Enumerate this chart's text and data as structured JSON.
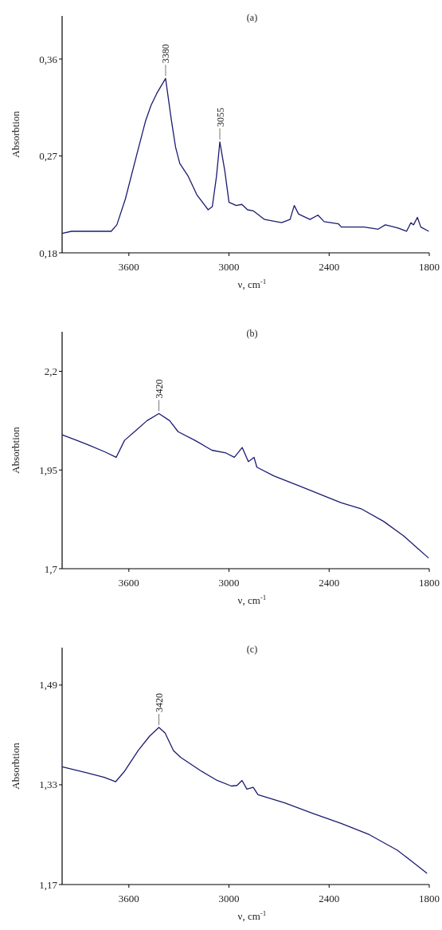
{
  "chart_data": [
    {
      "type": "line",
      "title": "(a)",
      "xlabel": "ν, cm$^{-1}$",
      "ylabel": "Absorbtion",
      "color": "#1b1b72",
      "xlim": [
        4000,
        1800
      ],
      "xticks": [
        3600,
        3000,
        2400,
        1800
      ],
      "ylim": [
        0.18,
        0.4
      ],
      "yticks": [
        {
          "value": 0.18,
          "label": "0,18"
        },
        {
          "value": 0.27,
          "label": "0,27"
        },
        {
          "value": 0.36,
          "label": "0,36"
        }
      ],
      "x": [
        4000,
        3944,
        3706,
        3672,
        3621,
        3553,
        3501,
        3467,
        3433,
        3380,
        3346,
        3320,
        3295,
        3244,
        3193,
        3125,
        3100,
        3075,
        3055,
        3025,
        3000,
        2957,
        2923,
        2889,
        2855,
        2787,
        2685,
        2634,
        2609,
        2583,
        2515,
        2467,
        2430,
        2345,
        2327,
        2259,
        2191,
        2106,
        2063,
        1987,
        1936,
        1910,
        1894,
        1871,
        1851,
        1803
      ],
      "values": [
        0.198,
        0.2,
        0.2,
        0.206,
        0.23,
        0.271,
        0.302,
        0.317,
        0.328,
        0.342,
        0.304,
        0.278,
        0.263,
        0.251,
        0.234,
        0.22,
        0.223,
        0.251,
        0.283,
        0.256,
        0.227,
        0.224,
        0.225,
        0.22,
        0.219,
        0.211,
        0.208,
        0.211,
        0.224,
        0.216,
        0.211,
        0.215,
        0.209,
        0.207,
        0.204,
        0.204,
        0.204,
        0.202,
        0.206,
        0.203,
        0.2,
        0.208,
        0.206,
        0.213,
        0.204,
        0.2
      ],
      "annotations": [
        {
          "text": "3380",
          "x": 3380,
          "y": 0.342
        },
        {
          "text": "3055",
          "x": 3055,
          "y": 0.283
        }
      ]
    },
    {
      "type": "line",
      "title": "(b)",
      "xlabel": "ν, cm$^{-1}$",
      "ylabel": "Absorbtion",
      "color": "#1b1b72",
      "xlim": [
        4000,
        1800
      ],
      "xticks": [
        3600,
        3000,
        2400,
        1800
      ],
      "ylim": [
        1.7,
        2.3
      ],
      "yticks": [
        {
          "value": 1.7,
          "label": "1,7"
        },
        {
          "value": 1.95,
          "label": "1,95"
        },
        {
          "value": 2.2,
          "label": "2,2"
        }
      ],
      "x": [
        4000,
        3912,
        3845,
        3744,
        3676,
        3668,
        3626,
        3558,
        3491,
        3420,
        3356,
        3305,
        3204,
        3102,
        3018,
        2968,
        2921,
        2884,
        2850,
        2833,
        2732,
        2580,
        2411,
        2327,
        2209,
        2074,
        1956,
        1871,
        1804
      ],
      "values": [
        2.039,
        2.025,
        2.014,
        1.996,
        1.982,
        1.989,
        2.025,
        2.05,
        2.075,
        2.093,
        2.075,
        2.047,
        2.025,
        2.0,
        1.993,
        1.982,
        2.007,
        1.971,
        1.982,
        1.957,
        1.935,
        1.91,
        1.881,
        1.867,
        1.852,
        1.82,
        1.784,
        1.752,
        1.727
      ],
      "annotations": [
        {
          "text": "3420",
          "x": 3420,
          "y": 2.093
        }
      ]
    },
    {
      "type": "line",
      "title": "(c)",
      "xlabel": "ν, cm$^{-1}$",
      "ylabel": "Absorbtion",
      "color": "#1b1b72",
      "xlim": [
        4000,
        1800
      ],
      "xticks": [
        3600,
        3000,
        2400,
        1800
      ],
      "ylim": [
        1.17,
        1.55
      ],
      "yticks": [
        {
          "value": 1.17,
          "label": "1,17"
        },
        {
          "value": 1.33,
          "label": "1,33"
        },
        {
          "value": 1.49,
          "label": "1,49"
        }
      ],
      "x": [
        4000,
        3848,
        3747,
        3679,
        3628,
        3544,
        3476,
        3420,
        3383,
        3333,
        3290,
        3172,
        3071,
        2986,
        2952,
        2922,
        2893,
        2855,
        2826,
        2666,
        2497,
        2328,
        2159,
        1991,
        1889,
        1813
      ],
      "values": [
        1.359,
        1.349,
        1.342,
        1.335,
        1.351,
        1.385,
        1.408,
        1.422,
        1.413,
        1.385,
        1.374,
        1.353,
        1.337,
        1.328,
        1.329,
        1.337,
        1.323,
        1.326,
        1.314,
        1.301,
        1.284,
        1.268,
        1.25,
        1.225,
        1.204,
        1.188
      ],
      "annotations": [
        {
          "text": "3420",
          "x": 3420,
          "y": 1.422
        }
      ]
    }
  ]
}
